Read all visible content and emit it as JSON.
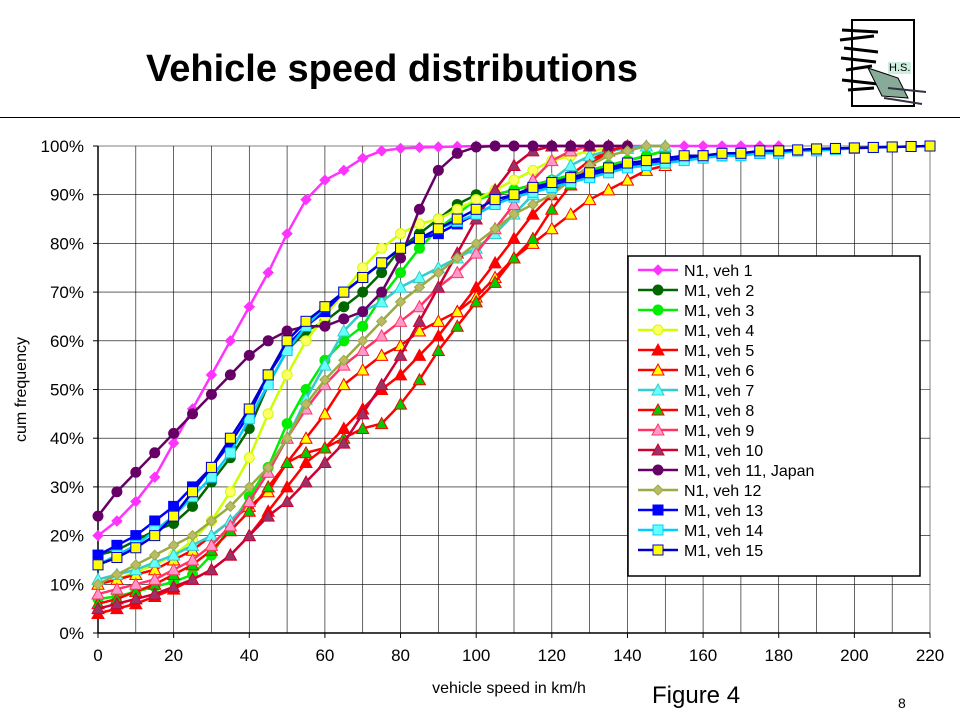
{
  "slide": {
    "title": "Vehicle speed distributions",
    "figure_label": "Figure 4",
    "page_number": "8",
    "logo_text": "H.S."
  },
  "chart_data": {
    "type": "line",
    "xlabel": "vehicle speed in km/h",
    "ylabel": "cum frequency",
    "xlim": [
      0,
      220
    ],
    "ylim": [
      0,
      100
    ],
    "x_ticks": [
      0,
      20,
      40,
      60,
      80,
      100,
      120,
      140,
      160,
      180,
      200,
      220
    ],
    "y_ticks": [
      "0%",
      "10%",
      "20%",
      "30%",
      "40%",
      "50%",
      "60%",
      "70%",
      "80%",
      "90%",
      "100%"
    ],
    "grid": true,
    "legend_position": "right",
    "series": [
      {
        "name": "N1, veh 1",
        "color": "#ff33ff",
        "marker": "diamond",
        "fill": "#ff33ff",
        "x": [
          0,
          5,
          10,
          15,
          20,
          25,
          30,
          35,
          40,
          45,
          50,
          55,
          60,
          65,
          70,
          75,
          80,
          85,
          90,
          95,
          100,
          105,
          110,
          115,
          120,
          125,
          130,
          135,
          140,
          145,
          150,
          155,
          160,
          165,
          170,
          175,
          180
        ],
        "y": [
          20,
          23,
          27,
          32,
          39,
          46,
          53,
          60,
          67,
          74,
          82,
          89,
          93,
          95,
          97.5,
          99,
          99.5,
          99.7,
          99.8,
          99.9,
          100,
          100,
          100,
          100,
          100,
          100,
          100,
          100,
          100,
          100,
          100,
          100,
          100,
          100,
          100,
          100,
          100
        ]
      },
      {
        "name": "M1, veh 2",
        "color": "#006600",
        "marker": "circle",
        "fill": "#006600",
        "x": [
          0,
          5,
          10,
          15,
          20,
          25,
          30,
          35,
          40,
          45,
          50,
          55,
          60,
          65,
          70,
          75,
          80,
          85,
          90,
          95,
          100,
          105,
          110,
          115,
          120,
          125,
          130,
          135,
          140,
          145,
          150
        ],
        "y": [
          16,
          17,
          19,
          21,
          22.5,
          26,
          31,
          36,
          42,
          51,
          58,
          62,
          64,
          67,
          70,
          74,
          79,
          82,
          85,
          88,
          90,
          90,
          91,
          92,
          93,
          94,
          95,
          96,
          97,
          98,
          99
        ]
      },
      {
        "name": "M1, veh 3",
        "color": "#00ee00",
        "marker": "circle",
        "fill": "#00ee00",
        "x": [
          0,
          5,
          10,
          15,
          20,
          25,
          30,
          35,
          40,
          45,
          50,
          55,
          60,
          65,
          70,
          75,
          80,
          85,
          90,
          95,
          100,
          105,
          110,
          115,
          120,
          125,
          130,
          135,
          140,
          145,
          150
        ],
        "y": [
          7,
          7.5,
          8.5,
          9.5,
          10.5,
          12,
          16,
          22,
          28,
          34,
          43,
          50,
          56,
          60,
          63,
          69,
          74,
          79,
          83,
          86,
          89,
          90,
          91,
          92,
          93,
          94,
          95,
          96,
          97,
          98,
          99
        ]
      },
      {
        "name": "M1, veh 4",
        "color": "#ccff00",
        "marker": "circle",
        "fill": "#ffff66",
        "x": [
          0,
          5,
          10,
          15,
          20,
          25,
          30,
          35,
          40,
          45,
          50,
          55,
          60,
          65,
          70,
          75,
          80,
          85,
          90,
          95,
          100,
          105,
          110,
          115,
          120,
          125,
          130,
          135,
          140
        ],
        "y": [
          10,
          11,
          12.5,
          14,
          16,
          19,
          23,
          29,
          36,
          45,
          53,
          60,
          65,
          70,
          75,
          79,
          82,
          84,
          85,
          87,
          89,
          91,
          93,
          95,
          97,
          98,
          99,
          99.5,
          100
        ]
      },
      {
        "name": "M1, veh 5",
        "color": "#ff0000",
        "marker": "triangle",
        "fill": "#ff0000",
        "x": [
          0,
          5,
          10,
          15,
          20,
          25,
          30,
          35,
          40,
          45,
          50,
          55,
          60,
          65,
          70,
          75,
          80,
          85,
          90,
          95,
          100,
          105,
          110,
          115,
          120,
          125,
          130,
          135,
          140
        ],
        "y": [
          4,
          5,
          6,
          7.5,
          9,
          11,
          13,
          16,
          20,
          25,
          30,
          35,
          38,
          42,
          46,
          50,
          53,
          57,
          61,
          66,
          71,
          76,
          81,
          86,
          90,
          94,
          97,
          99,
          100
        ]
      },
      {
        "name": "M1, veh 6",
        "color": "#ff0000",
        "marker": "triangle",
        "fill": "#ffff00",
        "x": [
          0,
          5,
          10,
          15,
          20,
          25,
          30,
          35,
          40,
          45,
          50,
          55,
          60,
          65,
          70,
          75,
          80,
          85,
          90,
          95,
          100,
          105,
          110,
          115,
          120,
          125,
          130,
          135,
          140,
          145,
          150
        ],
        "y": [
          10,
          11,
          12,
          13,
          15,
          17,
          20,
          23,
          26,
          29,
          35,
          40,
          45,
          51,
          54,
          57,
          59,
          62,
          64,
          66,
          69,
          73,
          77,
          80,
          83,
          86,
          89,
          91,
          93,
          95,
          96
        ]
      },
      {
        "name": "M1, veh 7",
        "color": "#33cccc",
        "marker": "triangle",
        "fill": "#66ffff",
        "x": [
          0,
          5,
          10,
          15,
          20,
          25,
          30,
          35,
          40,
          45,
          50,
          55,
          60,
          65,
          70,
          75,
          80,
          85,
          90,
          95,
          100,
          105,
          110,
          115,
          120,
          125,
          130,
          135,
          140,
          145,
          150
        ],
        "y": [
          11,
          12,
          13,
          14.5,
          16,
          18,
          20,
          23,
          27,
          33,
          40,
          48,
          55,
          62,
          66,
          68,
          71,
          73,
          75,
          77,
          79,
          82,
          86,
          90,
          93,
          96,
          98,
          99,
          99.5,
          100,
          100
        ]
      },
      {
        "name": "M1, veh 8",
        "color": "#ff0000",
        "marker": "triangle",
        "fill": "#00cc00",
        "x": [
          0,
          5,
          10,
          15,
          20,
          25,
          30,
          35,
          40,
          45,
          50,
          55,
          60,
          65,
          70,
          75,
          80,
          85,
          90,
          95,
          100,
          105,
          110,
          115,
          120,
          125,
          130,
          135,
          140
        ],
        "y": [
          6,
          7,
          8.5,
          10,
          12,
          14,
          17,
          21,
          25,
          30,
          35,
          37,
          38,
          40,
          42,
          43,
          47,
          52,
          58,
          63,
          68,
          72,
          77,
          81,
          87,
          92,
          96,
          99,
          100
        ]
      },
      {
        "name": "M1, veh 9",
        "color": "#ff3366",
        "marker": "triangle",
        "fill": "#ff99cc",
        "x": [
          0,
          5,
          10,
          15,
          20,
          25,
          30,
          35,
          40,
          45,
          50,
          55,
          60,
          65,
          70,
          75,
          80,
          85,
          90,
          95,
          100,
          105,
          110,
          115,
          120,
          125,
          130,
          135,
          140
        ],
        "y": [
          8,
          9,
          10,
          11,
          13,
          15,
          18,
          22,
          27,
          33,
          40,
          46,
          51,
          55,
          58,
          61,
          64,
          67,
          71,
          74,
          78,
          83,
          88,
          93,
          97,
          99,
          100,
          100,
          100
        ]
      },
      {
        "name": "M1, veh 10",
        "color": "#cc0033",
        "marker": "triangle",
        "fill": "#993366",
        "x": [
          0,
          5,
          10,
          15,
          20,
          25,
          30,
          35,
          40,
          45,
          50,
          55,
          60,
          65,
          70,
          75,
          80,
          85,
          90,
          95,
          100,
          105,
          110,
          115,
          120,
          125,
          130,
          135
        ],
        "y": [
          5,
          6,
          7,
          8,
          9.5,
          11,
          13,
          16,
          20,
          24,
          27,
          31,
          35,
          39,
          45,
          51,
          57,
          64,
          71,
          78,
          85,
          91,
          96,
          99,
          100,
          100,
          100,
          100
        ]
      },
      {
        "name": "M1, veh 11, Japan",
        "color": "#660066",
        "marker": "circle",
        "fill": "#660066",
        "x": [
          0,
          5,
          10,
          15,
          20,
          25,
          30,
          35,
          40,
          45,
          50,
          55,
          60,
          65,
          70,
          75,
          80,
          85,
          90,
          95,
          100,
          105,
          110,
          115,
          120,
          125,
          130,
          135,
          140
        ],
        "y": [
          24,
          29,
          33,
          37,
          41,
          45,
          49,
          53,
          57,
          60,
          62,
          63,
          63,
          64.5,
          66,
          70,
          77,
          87,
          95,
          98.5,
          99.8,
          100,
          100,
          100,
          100,
          100,
          100,
          100,
          100
        ]
      },
      {
        "name": "N1, veh 12",
        "color": "#99aa44",
        "marker": "diamond",
        "fill": "#bbbb66",
        "x": [
          0,
          5,
          10,
          15,
          20,
          25,
          30,
          35,
          40,
          45,
          50,
          55,
          60,
          65,
          70,
          75,
          80,
          85,
          90,
          95,
          100,
          105,
          110,
          115,
          120,
          125,
          130,
          135,
          140,
          145,
          150
        ],
        "y": [
          10,
          12,
          14,
          16,
          18,
          20,
          23,
          26,
          30,
          34,
          40,
          47,
          52,
          56,
          60,
          64,
          68,
          71,
          74,
          77,
          80,
          83,
          86,
          88,
          90,
          93,
          96,
          98,
          99,
          100,
          100
        ]
      },
      {
        "name": "M1, veh 13",
        "color": "#0000ff",
        "marker": "square",
        "fill": "#0000ff",
        "x": [
          0,
          5,
          10,
          15,
          20,
          25,
          30,
          35,
          40,
          45,
          50,
          55,
          60,
          65,
          70,
          75,
          80,
          85,
          90,
          95,
          100,
          105,
          110,
          115,
          120,
          125,
          130,
          135,
          140,
          145,
          150,
          155,
          160,
          165,
          170,
          175,
          180,
          185,
          190,
          195,
          200,
          205,
          210,
          215,
          220
        ],
        "y": [
          16,
          18,
          20,
          23,
          26,
          30,
          34,
          39,
          45,
          53,
          59,
          63,
          66,
          70,
          73,
          76,
          79,
          81,
          82,
          84,
          86,
          88,
          90,
          91,
          92,
          93,
          94,
          95,
          96,
          96.5,
          97,
          97.5,
          98,
          98,
          98.5,
          98.5,
          99,
          99,
          99.2,
          99.4,
          99.6,
          99.7,
          99.8,
          99.9,
          100
        ]
      },
      {
        "name": "M1, veh 14",
        "color": "#00ccff",
        "marker": "square",
        "fill": "#66ffff",
        "x": [
          0,
          5,
          10,
          15,
          20,
          25,
          30,
          35,
          40,
          45,
          50,
          55,
          60,
          65,
          70,
          75,
          80,
          85,
          90,
          95,
          100,
          105,
          110,
          115,
          120,
          125,
          130,
          135,
          140,
          145,
          150,
          155,
          160,
          165,
          170,
          175,
          180,
          185,
          190,
          195,
          200,
          205,
          210,
          215,
          220
        ],
        "y": [
          14,
          16,
          18,
          21,
          24,
          28,
          32,
          37,
          44,
          51,
          58,
          63,
          67,
          70,
          73,
          76,
          79,
          81,
          83,
          84.5,
          86,
          88,
          89.5,
          90.5,
          91.5,
          92.5,
          93.5,
          94.5,
          95.5,
          96,
          96.5,
          97,
          97.5,
          98,
          98,
          98.5,
          98.5,
          99,
          99,
          99.3,
          99.5,
          99.7,
          99.8,
          99.9,
          100
        ]
      },
      {
        "name": "M1, veh 15",
        "color": "#0000cc",
        "marker": "square",
        "fill": "#ffff00",
        "x": [
          0,
          5,
          10,
          15,
          20,
          25,
          30,
          35,
          40,
          45,
          50,
          55,
          60,
          65,
          70,
          75,
          80,
          85,
          90,
          95,
          100,
          105,
          110,
          115,
          120,
          125,
          130,
          135,
          140,
          145,
          150,
          155,
          160,
          165,
          170,
          175,
          180,
          185,
          190,
          195,
          200,
          205,
          210,
          215,
          220
        ],
        "y": [
          14,
          15.5,
          17.5,
          20,
          24,
          29,
          34,
          40,
          46,
          53,
          60,
          64,
          67,
          70,
          73,
          76,
          79,
          81,
          83,
          85,
          87,
          89,
          90,
          91.5,
          92.5,
          93.5,
          94.5,
          95.5,
          96.5,
          97,
          97.5,
          98,
          98,
          98.5,
          98.5,
          99,
          99,
          99.2,
          99.4,
          99.5,
          99.6,
          99.7,
          99.8,
          99.9,
          100
        ]
      }
    ]
  }
}
